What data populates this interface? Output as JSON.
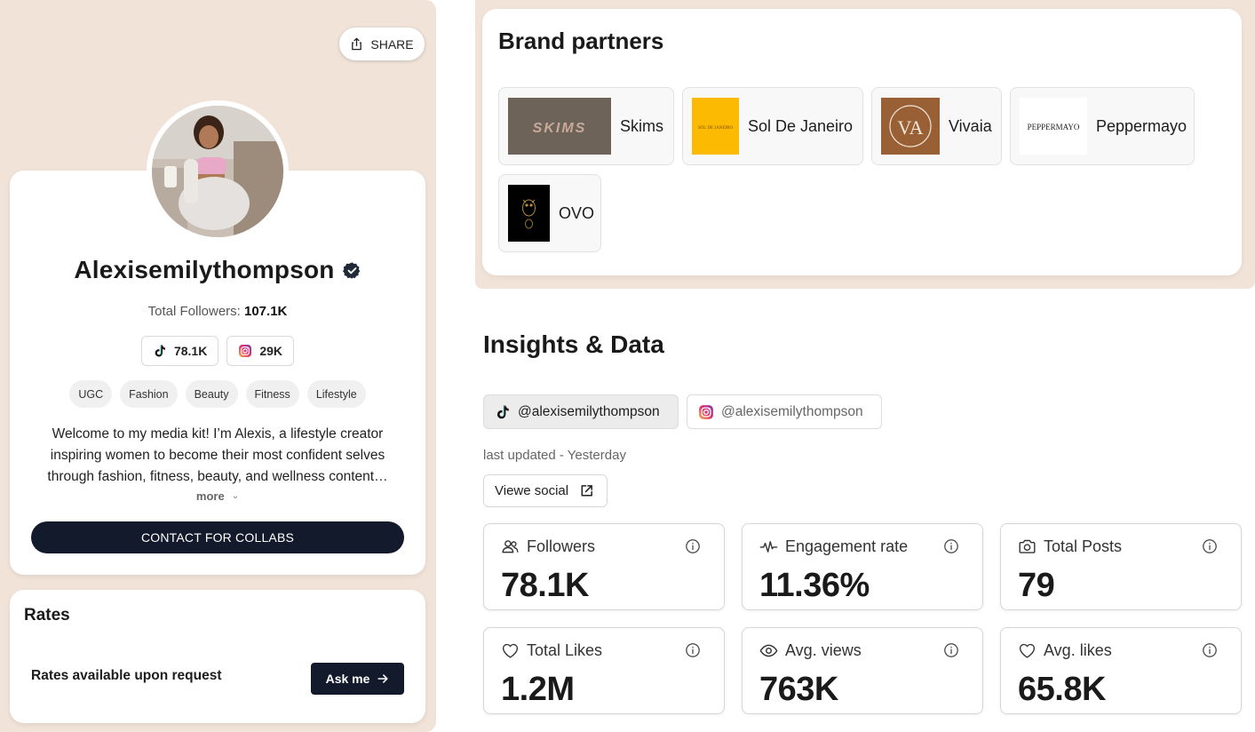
{
  "profile": {
    "share_label": "SHARE",
    "name": "Alexisemilythompson",
    "total_followers_label": "Total Followers:",
    "total_followers_value": "107.1K",
    "tiktok_count": "78.1K",
    "instagram_count": "29K",
    "tags": [
      "UGC",
      "Fashion",
      "Beauty",
      "Fitness",
      "Lifestyle"
    ],
    "bio": "Welcome to my media kit! I’m Alexis, a lifestyle creator inspiring women to become their most confident selves through fashion, fitness, beauty, and wellness content…",
    "more_label": "more",
    "contact_label": "CONTACT FOR COLLABS"
  },
  "rates": {
    "title": "Rates",
    "text": "Rates available upon request",
    "ask_label": "Ask me"
  },
  "brands": {
    "title": "Brand partners",
    "items": [
      {
        "name": "Skims",
        "logo_text": "SKIMS",
        "logo_bg": "#6d6358",
        "logo_fg": "#c9a99a"
      },
      {
        "name": "Sol De Janeiro",
        "logo_text": "SOL DE JANEIRO",
        "logo_bg": "#fcba03",
        "logo_fg": "#7a4e00"
      },
      {
        "name": "Vivaia",
        "logo_text": "VA",
        "logo_bg": "#9a6035",
        "logo_fg": "#f3e6d8"
      },
      {
        "name": "Peppermayo",
        "logo_text": "PEPPERMAYO",
        "logo_bg": "#ffffff",
        "logo_fg": "#222222"
      },
      {
        "name": "OVO",
        "logo_text": "",
        "logo_bg": "#000000",
        "logo_fg": "#b08d3a"
      }
    ]
  },
  "insights": {
    "title": "Insights & Data",
    "tiktok_handle": "@alexisemilythompson",
    "instagram_handle": "@alexisemilythompson",
    "last_updated": "last updated - Yesterday",
    "view_social_label": "Viewe social",
    "stats": [
      {
        "label": "Followers",
        "value": "78.1K",
        "icon": "users-icon"
      },
      {
        "label": "Engagement rate",
        "value": "11.36%",
        "icon": "activity-icon"
      },
      {
        "label": "Total Posts",
        "value": "79",
        "icon": "camera-icon"
      },
      {
        "label": "Total Likes",
        "value": "1.2M",
        "icon": "heart-icon"
      },
      {
        "label": "Avg. views",
        "value": "763K",
        "icon": "eye-icon"
      },
      {
        "label": "Avg. likes",
        "value": "65.8K",
        "icon": "heart-icon"
      }
    ]
  }
}
